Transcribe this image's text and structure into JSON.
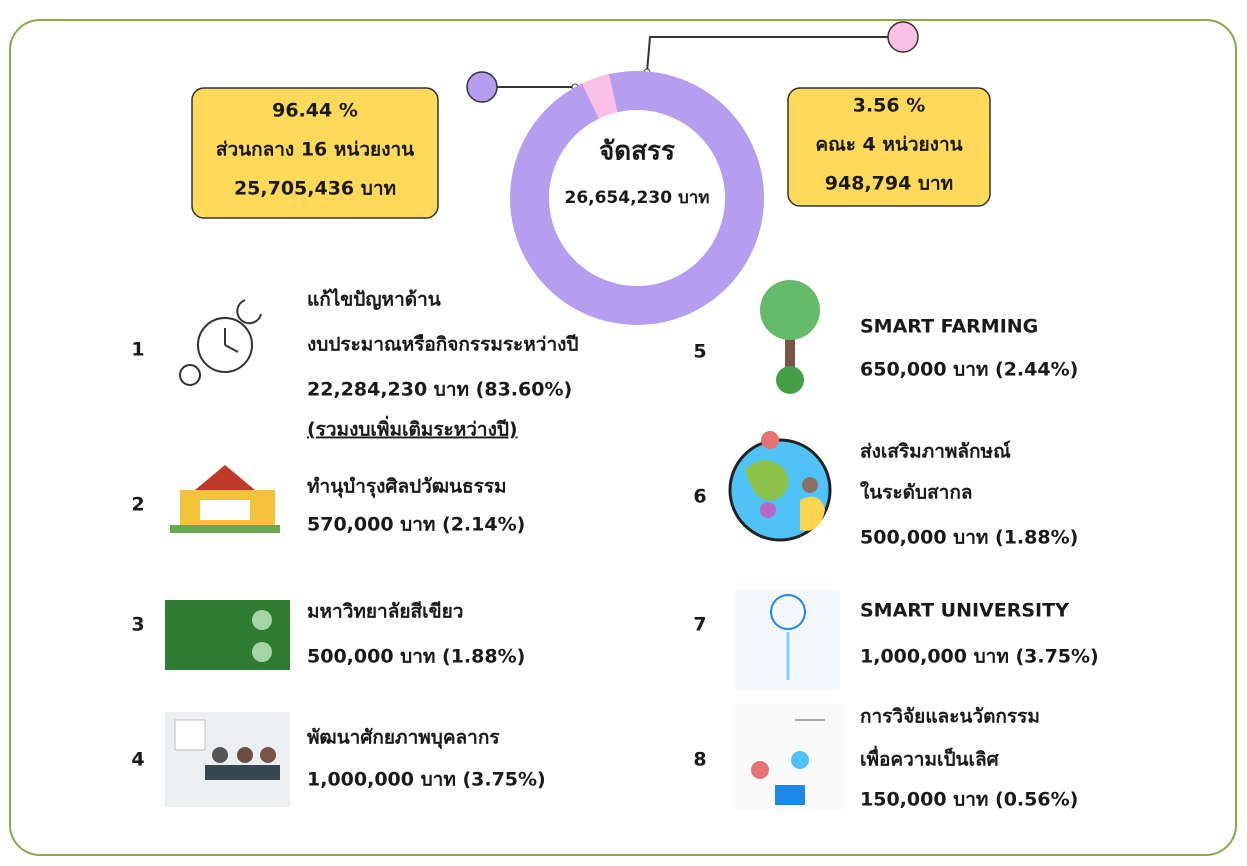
{
  "chart_data": {
    "type": "pie",
    "categories": [
      "ส่วนกลาง 16 หน่วยงาน",
      "คณะ 4 หน่วยงาน"
    ],
    "values": [
      96.44,
      3.56
    ],
    "value_labels": [
      "96.44 %",
      "3.56 %"
    ],
    "amounts": [
      "25,705,436 บาท",
      "948,794 บาท"
    ],
    "colors": [
      "#b69df0",
      "#f9bfe4"
    ],
    "center_label": "จัดสรร",
    "center_value": "26,654,230 บาท"
  },
  "items": [
    {
      "number": 1,
      "lines": [
        "แก้ไขปัญหาด้าน",
        "งบประมาณหรือกิจกรรมระหว่างปี",
        "22,284,230 บาท (83.60%)"
      ],
      "note": "(รวมงบเพิ่มเติมระหว่างปี)"
    },
    {
      "number": 2,
      "lines": [
        "ทำนุบำรุงศิลปวัฒนธรรม",
        "570,000 บาท  (2.14%)"
      ]
    },
    {
      "number": 3,
      "lines": [
        "มหาวิทยาลัยสีเขียว",
        "500,000 บาท  (1.88%)"
      ]
    },
    {
      "number": 4,
      "lines": [
        "พัฒนาศักยภาพบุคลากร",
        "1,000,000 บาท (3.75%)"
      ]
    },
    {
      "number": 5,
      "lines": [
        "SMART FARMING",
        "650,000 บาท (2.44%)"
      ]
    },
    {
      "number": 6,
      "lines": [
        "ส่งเสริมภาพลักษณ์",
        "ในระดับสากล",
        "500,000 บาท (1.88%)"
      ]
    },
    {
      "number": 7,
      "lines": [
        "SMART UNIVERSITY",
        "1,000,000 บาท (3.75%)"
      ]
    },
    {
      "number": 8,
      "lines": [
        "การวิจัยและนวัตกรรม",
        "เพื่อความเป็นเลิศ",
        "150,000 บาท (0.56%)"
      ]
    }
  ]
}
